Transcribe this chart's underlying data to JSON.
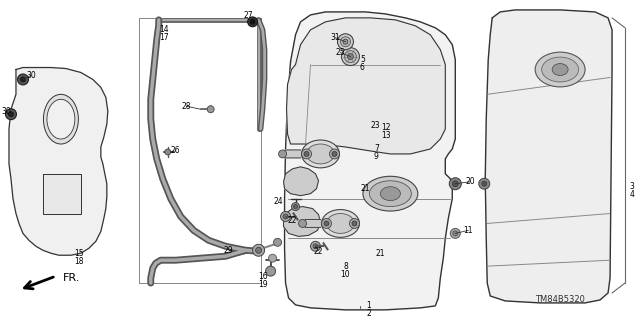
{
  "background_color": "#ffffff",
  "diagram_code": "TM84B5320",
  "fr_arrow_label": "FR.",
  "line_color": "#333333",
  "fill_light": "#f0f0f0",
  "fill_white": "#ffffff"
}
